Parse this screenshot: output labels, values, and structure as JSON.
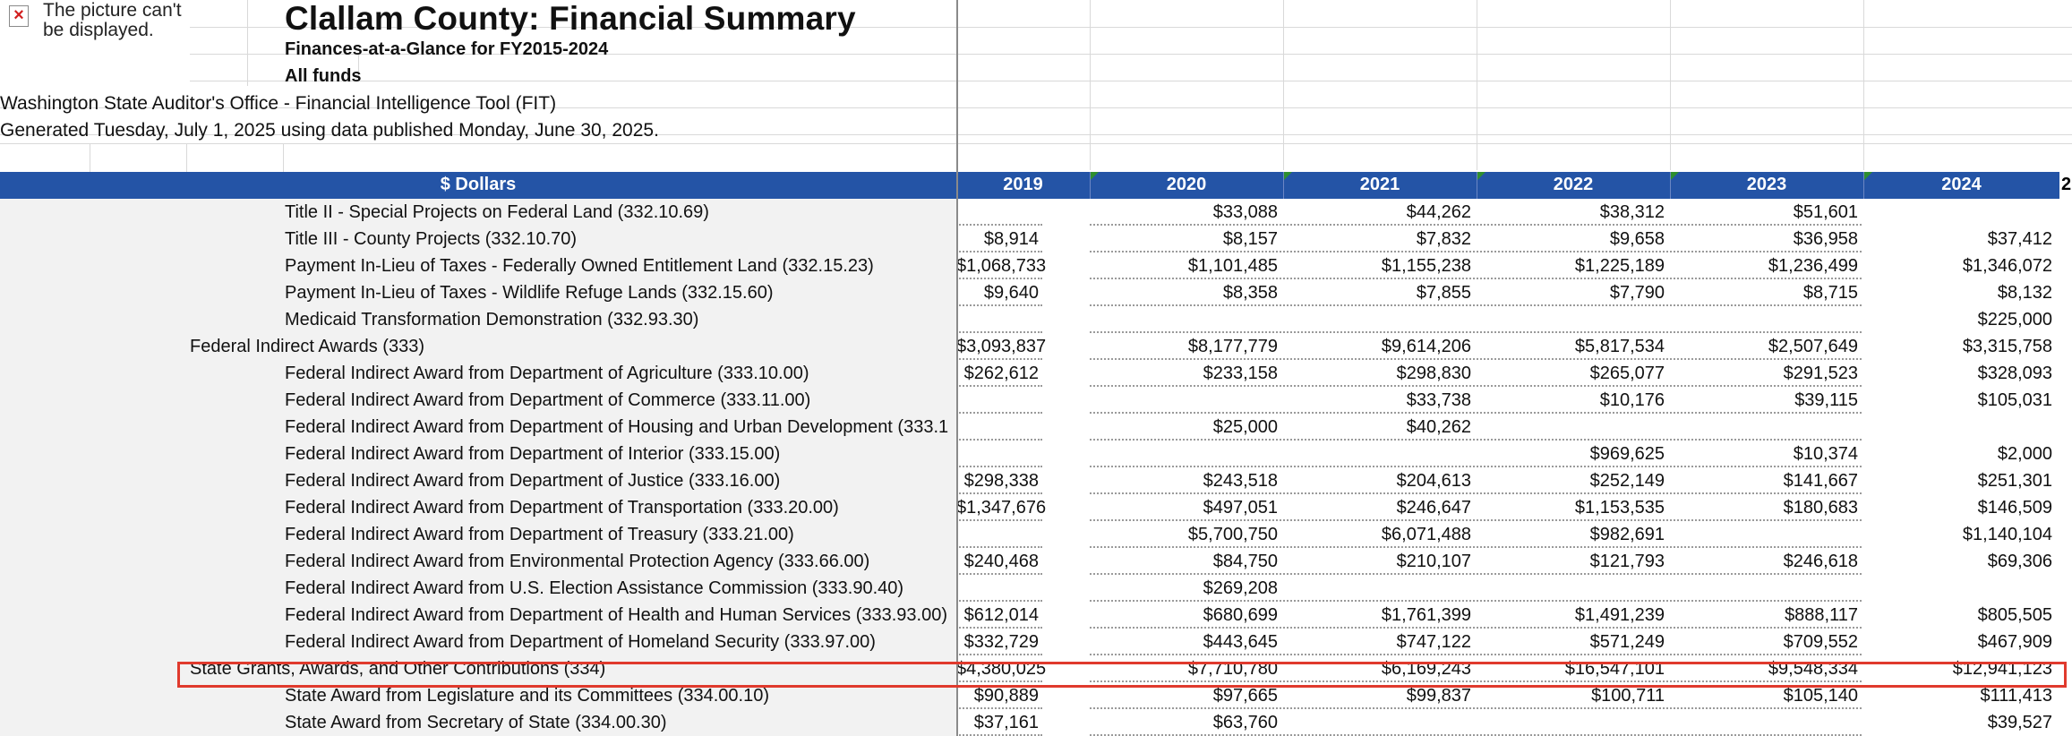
{
  "picture_placeholder": {
    "text": "The picture can't be displayed."
  },
  "header": {
    "title": "Clallam County: Financial Summary",
    "subtitle": "Finances-at-a-Glance for FY2015-2024",
    "funds": "All funds",
    "source": "Washington State Auditor's Office - Financial Intelligence Tool (FIT)",
    "generated": "Generated Tuesday, July 1, 2025 using data published Monday, June 30, 2025."
  },
  "table": {
    "label_header": "$ Dollars",
    "years": [
      "2019",
      "2020",
      "2021",
      "2022",
      "2023",
      "2024"
    ],
    "next_col_fragment": "2",
    "rows": [
      {
        "label": "Title II - Special Projects on Federal Land (332.10.69)",
        "indent": 2,
        "values": [
          "",
          "$33,088",
          "$44,262",
          "$38,312",
          "$51,601",
          ""
        ]
      },
      {
        "label": "Title III - County Projects (332.10.70)",
        "indent": 2,
        "values": [
          "$8,914",
          "$8,157",
          "$7,832",
          "$9,658",
          "$36,958",
          "$37,412"
        ]
      },
      {
        "label": "Payment In-Lieu of Taxes - Federally Owned Entitlement Land (332.15.23)",
        "indent": 2,
        "values": [
          "$1,068,733",
          "$1,101,485",
          "$1,155,238",
          "$1,225,189",
          "$1,236,499",
          "$1,346,072"
        ]
      },
      {
        "label": "Payment In-Lieu of Taxes - Wildlife Refuge Lands (332.15.60)",
        "indent": 2,
        "values": [
          "$9,640",
          "$8,358",
          "$7,855",
          "$7,790",
          "$8,715",
          "$8,132"
        ]
      },
      {
        "label": "Medicaid Transformation Demonstration (332.93.30)",
        "indent": 2,
        "values": [
          "",
          "",
          "",
          "",
          "",
          "$225,000"
        ]
      },
      {
        "label": "Federal Indirect Awards (333)",
        "indent": 1,
        "values": [
          "$3,093,837",
          "$8,177,779",
          "$9,614,206",
          "$5,817,534",
          "$2,507,649",
          "$3,315,758"
        ]
      },
      {
        "label": "Federal Indirect Award from Department of Agriculture (333.10.00)",
        "indent": 2,
        "values": [
          "$262,612",
          "$233,158",
          "$298,830",
          "$265,077",
          "$291,523",
          "$328,093"
        ]
      },
      {
        "label": "Federal Indirect Award from Department of Commerce (333.11.00)",
        "indent": 2,
        "values": [
          "",
          "",
          "$33,738",
          "$10,176",
          "$39,115",
          "$105,031"
        ]
      },
      {
        "label": "Federal Indirect Award from Department of Housing and Urban Development (333.1",
        "indent": 2,
        "values": [
          "",
          "$25,000",
          "$40,262",
          "",
          "",
          ""
        ]
      },
      {
        "label": "Federal Indirect Award from Department of Interior (333.15.00)",
        "indent": 2,
        "values": [
          "",
          "",
          "",
          "$969,625",
          "$10,374",
          "$2,000"
        ]
      },
      {
        "label": "Federal Indirect Award from Department of Justice (333.16.00)",
        "indent": 2,
        "values": [
          "$298,338",
          "$243,518",
          "$204,613",
          "$252,149",
          "$141,667",
          "$251,301"
        ]
      },
      {
        "label": "Federal Indirect Award from Department of Transportation (333.20.00)",
        "indent": 2,
        "values": [
          "$1,347,676",
          "$497,051",
          "$246,647",
          "$1,153,535",
          "$180,683",
          "$146,509"
        ]
      },
      {
        "label": "Federal Indirect Award from Department of Treasury (333.21.00)",
        "indent": 2,
        "values": [
          "",
          "$5,700,750",
          "$6,071,488",
          "$982,691",
          "",
          "$1,140,104"
        ]
      },
      {
        "label": "Federal Indirect Award from Environmental Protection Agency (333.66.00)",
        "indent": 2,
        "values": [
          "$240,468",
          "$84,750",
          "$210,107",
          "$121,793",
          "$246,618",
          "$69,306"
        ]
      },
      {
        "label": "Federal Indirect Award from U.S. Election Assistance Commission (333.90.40)",
        "indent": 2,
        "values": [
          "",
          "$269,208",
          "",
          "",
          "",
          ""
        ]
      },
      {
        "label": "Federal Indirect Award from Department of Health and Human Services (333.93.00)",
        "indent": 2,
        "values": [
          "$612,014",
          "$680,699",
          "$1,761,399",
          "$1,491,239",
          "$888,117",
          "$805,505"
        ]
      },
      {
        "label": "Federal Indirect Award from Department of Homeland Security (333.97.00)",
        "indent": 2,
        "values": [
          "$332,729",
          "$443,645",
          "$747,122",
          "$571,249",
          "$709,552",
          "$467,909"
        ]
      },
      {
        "label": "State Grants, Awards, and Other Contributions (334)",
        "indent": 1,
        "values": [
          "$4,380,025",
          "$7,710,780",
          "$6,169,243",
          "$16,547,101",
          "$9,548,334",
          "$12,941,123"
        ],
        "highlighted": true
      },
      {
        "label": "State Award from Legislature and its Committees (334.00.10)",
        "indent": 2,
        "values": [
          "$90,889",
          "$97,665",
          "$99,837",
          "$100,711",
          "$105,140",
          "$111,413"
        ]
      },
      {
        "label": "State Award from Secretary of State (334.00.30)",
        "indent": 2,
        "values": [
          "$37,161",
          "$63,760",
          "",
          "",
          "",
          "$39,527"
        ]
      }
    ]
  }
}
